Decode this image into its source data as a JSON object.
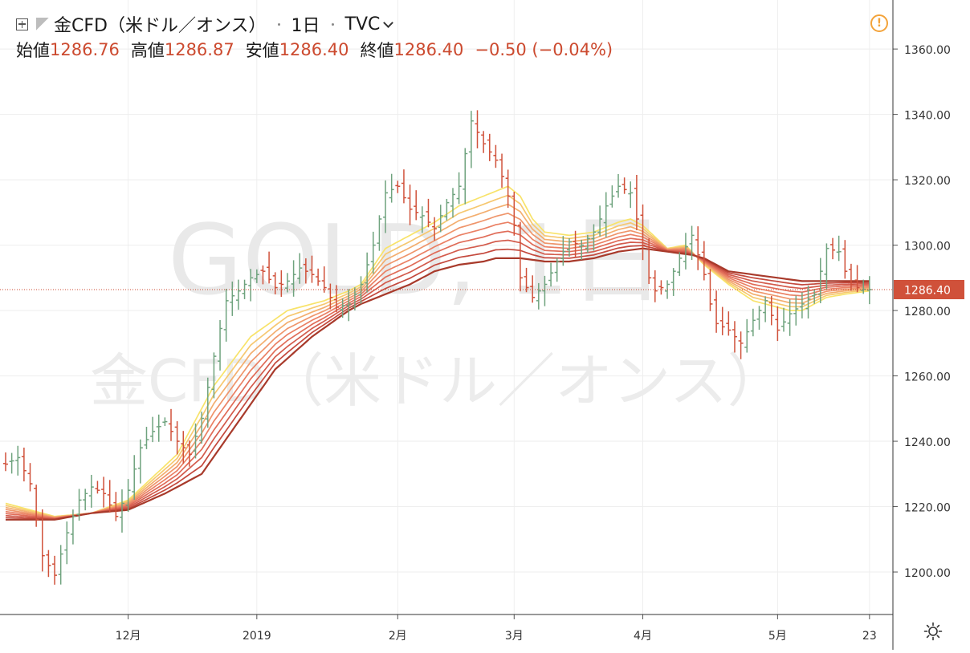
{
  "header": {
    "symbol": "金CFD（米ドル／オンス）",
    "interval": "1日",
    "source": "TVC",
    "ohlc": {
      "open_label": "始値",
      "open": "1286.76",
      "high_label": "高値",
      "high": "1286.87",
      "low_label": "安値",
      "low": "1286.40",
      "close_label": "終値",
      "close": "1286.40",
      "change": "−0.50 (−0.04%)"
    }
  },
  "watermark": {
    "line1": "GOLD, 1日",
    "line2": "金CFD（米ドル／オンス）"
  },
  "colors": {
    "up": "#6fa37e",
    "down": "#d0513a",
    "accent": "#cc4a2f",
    "ribbon": [
      "#f8e36a",
      "#f6c870",
      "#f3ae6f",
      "#ef956b",
      "#ea8064",
      "#e06c58",
      "#d35b4c",
      "#c4493d",
      "#a83a2b"
    ]
  },
  "icons": {
    "expand": "expand-icon",
    "flag": "flag-icon",
    "warning": "warning-icon",
    "settings": "gear-icon",
    "dropdown": "chevron-down-icon"
  },
  "chart_data": {
    "type": "ohlc-bar",
    "title": "金CFD（米ドル／オンス）",
    "interval": "1日",
    "ylim": [
      1187,
      1375
    ],
    "y_ticks": [
      1200,
      1220,
      1240,
      1260,
      1280,
      1300,
      1320,
      1340,
      1360
    ],
    "y_tick_labels": [
      "1200.00",
      "1220.00",
      "1240.00",
      "1260.00",
      "1280.00",
      "1300.00",
      "1320.00",
      "1340.00",
      "1360.00"
    ],
    "x_ticks": [
      {
        "label": "12月",
        "index": 20
      },
      {
        "label": "2019",
        "index": 41
      },
      {
        "label": "2月",
        "index": 64
      },
      {
        "label": "3月",
        "index": 83
      },
      {
        "label": "4月",
        "index": 104
      },
      {
        "label": "5月",
        "index": 126
      },
      {
        "label": "23",
        "index": 141
      }
    ],
    "x_count": 142,
    "last_price": 1286.4,
    "last_price_label": "1286.40",
    "ribbon_periods": 9,
    "price_points": [
      [
        0,
        1233
      ],
      [
        2,
        1235
      ],
      [
        4,
        1227
      ],
      [
        6,
        1205
      ],
      [
        8,
        1199
      ],
      [
        10,
        1212
      ],
      [
        12,
        1222
      ],
      [
        14,
        1226
      ],
      [
        16,
        1224
      ],
      [
        18,
        1217
      ],
      [
        20,
        1225
      ],
      [
        22,
        1238
      ],
      [
        24,
        1243
      ],
      [
        26,
        1246
      ],
      [
        28,
        1240
      ],
      [
        30,
        1236
      ],
      [
        32,
        1247
      ],
      [
        34,
        1266
      ],
      [
        36,
        1283
      ],
      [
        38,
        1286
      ],
      [
        40,
        1290
      ],
      [
        42,
        1292
      ],
      [
        44,
        1287
      ],
      [
        46,
        1289
      ],
      [
        48,
        1293
      ],
      [
        50,
        1291
      ],
      [
        52,
        1287
      ],
      [
        54,
        1281
      ],
      [
        56,
        1282
      ],
      [
        58,
        1288
      ],
      [
        60,
        1300
      ],
      [
        62,
        1316
      ],
      [
        64,
        1318
      ],
      [
        66,
        1311
      ],
      [
        68,
        1309
      ],
      [
        70,
        1305
      ],
      [
        72,
        1313
      ],
      [
        74,
        1318
      ],
      [
        76,
        1338
      ],
      [
        78,
        1331
      ],
      [
        80,
        1326
      ],
      [
        81,
        1321
      ],
      [
        82,
        1315
      ],
      [
        83,
        1306
      ],
      [
        84,
        1290
      ],
      [
        86,
        1284
      ],
      [
        88,
        1288
      ],
      [
        90,
        1295
      ],
      [
        92,
        1301
      ],
      [
        94,
        1300
      ],
      [
        96,
        1304
      ],
      [
        98,
        1312
      ],
      [
        100,
        1318
      ],
      [
        102,
        1316
      ],
      [
        104,
        1300
      ],
      [
        105,
        1290
      ],
      [
        106,
        1286
      ],
      [
        108,
        1288
      ],
      [
        110,
        1296
      ],
      [
        112,
        1303
      ],
      [
        114,
        1291
      ],
      [
        115,
        1282
      ],
      [
        116,
        1276
      ],
      [
        118,
        1274
      ],
      [
        120,
        1270
      ],
      [
        122,
        1277
      ],
      [
        124,
        1283
      ],
      [
        126,
        1274
      ],
      [
        128,
        1279
      ],
      [
        130,
        1282
      ],
      [
        132,
        1285
      ],
      [
        134,
        1299
      ],
      [
        136,
        1298
      ],
      [
        137,
        1292
      ],
      [
        138,
        1288
      ],
      [
        139,
        1287
      ],
      [
        140,
        1286.5
      ],
      [
        141,
        1286.4
      ]
    ],
    "ribbon_anchors": {
      "fast": [
        [
          0,
          1221
        ],
        [
          8,
          1217
        ],
        [
          14,
          1218
        ],
        [
          20,
          1222
        ],
        [
          28,
          1236
        ],
        [
          34,
          1257
        ],
        [
          40,
          1272
        ],
        [
          46,
          1280
        ],
        [
          52,
          1283
        ],
        [
          56,
          1286
        ],
        [
          58,
          1288
        ],
        [
          62,
          1299
        ],
        [
          66,
          1303
        ],
        [
          70,
          1307
        ],
        [
          74,
          1312
        ],
        [
          78,
          1315
        ],
        [
          82,
          1318
        ],
        [
          84,
          1315
        ],
        [
          86,
          1308
        ],
        [
          88,
          1304
        ],
        [
          92,
          1303
        ],
        [
          96,
          1304
        ],
        [
          100,
          1307
        ],
        [
          102,
          1308
        ],
        [
          104,
          1306
        ],
        [
          108,
          1299
        ],
        [
          111,
          1300
        ],
        [
          114,
          1294
        ],
        [
          118,
          1288
        ],
        [
          122,
          1283
        ],
        [
          126,
          1281
        ],
        [
          128,
          1280
        ],
        [
          130,
          1280
        ],
        [
          134,
          1284
        ],
        [
          137,
          1285
        ],
        [
          141,
          1286
        ]
      ],
      "slow": [
        [
          0,
          1216
        ],
        [
          8,
          1216
        ],
        [
          14,
          1218
        ],
        [
          20,
          1219
        ],
        [
          26,
          1224
        ],
        [
          32,
          1230
        ],
        [
          38,
          1246
        ],
        [
          44,
          1262
        ],
        [
          50,
          1272
        ],
        [
          56,
          1280
        ],
        [
          58,
          1282
        ],
        [
          62,
          1285
        ],
        [
          66,
          1288
        ],
        [
          70,
          1292
        ],
        [
          74,
          1294
        ],
        [
          78,
          1295
        ],
        [
          80,
          1296
        ],
        [
          84,
          1296
        ],
        [
          88,
          1295
        ],
        [
          92,
          1295
        ],
        [
          96,
          1296
        ],
        [
          100,
          1298
        ],
        [
          104,
          1299
        ],
        [
          108,
          1298
        ],
        [
          112,
          1297
        ],
        [
          114,
          1296
        ],
        [
          118,
          1292
        ],
        [
          122,
          1291
        ],
        [
          126,
          1290
        ],
        [
          130,
          1289
        ],
        [
          134,
          1289
        ],
        [
          137,
          1289
        ],
        [
          141,
          1289
        ]
      ]
    }
  }
}
